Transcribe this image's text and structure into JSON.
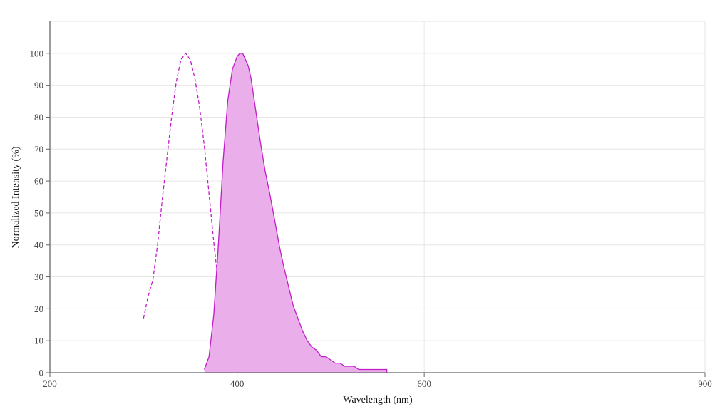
{
  "chart_data": {
    "type": "area",
    "title": "",
    "xlabel": "Wavelength (nm)",
    "ylabel": "Normalized Intensity (%)",
    "xlim": [
      200,
      900
    ],
    "ylim": [
      0,
      110
    ],
    "x_ticks": [
      200,
      400,
      600,
      900
    ],
    "y_ticks": [
      0,
      10,
      20,
      30,
      40,
      50,
      60,
      70,
      80,
      90,
      100
    ],
    "grid": true,
    "colors": {
      "line": "#c21bc8",
      "fill": "#eaaeea"
    },
    "series": [
      {
        "style": "dashed",
        "x": [
          300,
          305,
          310,
          315,
          320,
          325,
          330,
          335,
          340,
          345,
          350,
          355,
          360,
          365,
          370,
          375,
          380,
          385,
          390,
          395,
          400
        ],
        "y": [
          17,
          24,
          29,
          40,
          54,
          67,
          80,
          91,
          98,
          100,
          98,
          92,
          83,
          71,
          56,
          41,
          28,
          18,
          10,
          4,
          1
        ]
      },
      {
        "style": "filled",
        "x": [
          365,
          370,
          375,
          380,
          385,
          390,
          395,
          400,
          403,
          406,
          409,
          412,
          415,
          420,
          425,
          430,
          435,
          440,
          445,
          450,
          455,
          460,
          465,
          470,
          475,
          480,
          485,
          490,
          495,
          500,
          505,
          510,
          515,
          520,
          525,
          530,
          535,
          540,
          545,
          550,
          555,
          560
        ],
        "y": [
          1,
          5,
          18,
          40,
          66,
          85,
          95,
          99,
          100,
          100,
          98,
          96,
          92,
          82,
          72,
          63,
          56,
          48,
          40,
          33,
          27,
          21,
          17,
          13,
          10,
          8,
          7,
          5,
          5,
          4,
          3,
          3,
          2,
          2,
          2,
          1,
          1,
          1,
          1,
          1,
          1,
          1
        ]
      }
    ]
  }
}
